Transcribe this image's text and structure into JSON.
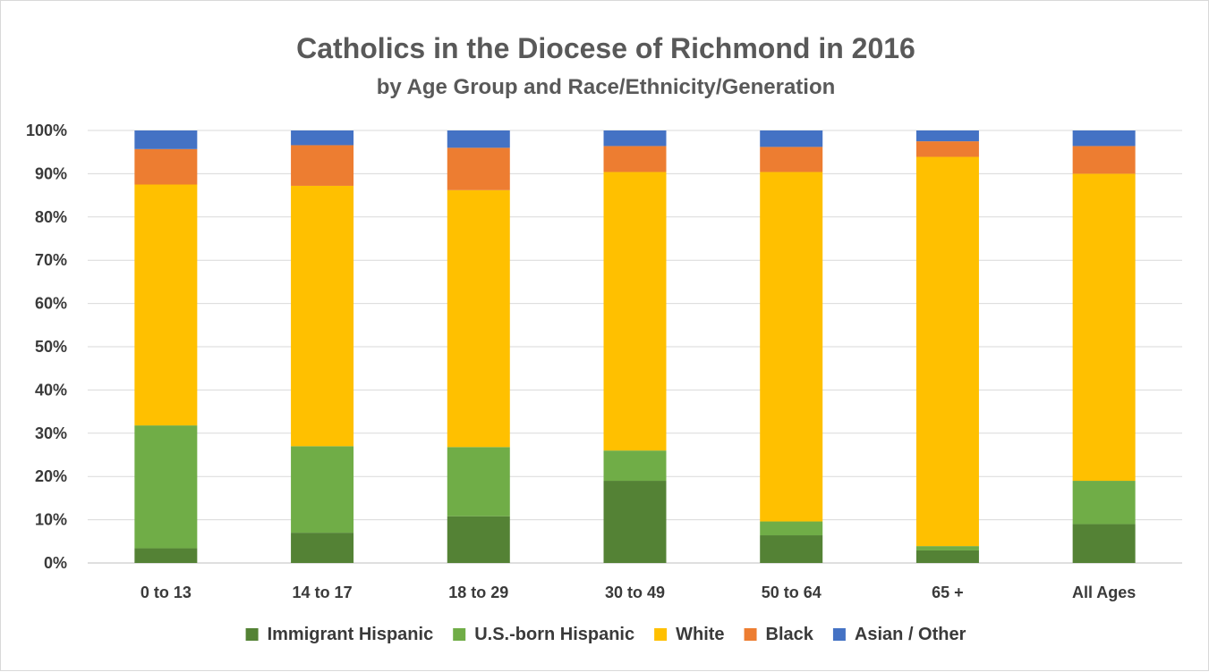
{
  "chart_data": {
    "type": "bar",
    "stacked": true,
    "title": "Catholics in the Diocese of Richmond in 2016",
    "subtitle": "by Age Group and Race/Ethnicity/Generation",
    "xlabel": "",
    "ylabel": "",
    "ylim": [
      0,
      100
    ],
    "y_ticks": [
      "0%",
      "10%",
      "20%",
      "30%",
      "40%",
      "50%",
      "60%",
      "70%",
      "80%",
      "90%",
      "100%"
    ],
    "grid": true,
    "legend_position": "bottom",
    "categories": [
      "0 to 13",
      "14 to 17",
      "18 to 29",
      "30 to 49",
      "50 to 64",
      "65 +",
      "All Ages"
    ],
    "series": [
      {
        "name": "Immigrant Hispanic",
        "color": "#548235",
        "values": [
          3.4,
          7.0,
          10.8,
          19.0,
          6.4,
          2.9,
          9.0
        ]
      },
      {
        "name": "U.S.-born Hispanic",
        "color": "#70ad47",
        "values": [
          28.4,
          20.0,
          16.0,
          7.0,
          3.2,
          1.0,
          10.0
        ]
      },
      {
        "name": "White",
        "color": "#ffc000",
        "values": [
          55.7,
          60.2,
          59.4,
          64.4,
          80.8,
          90.0,
          71.0
        ]
      },
      {
        "name": "Black",
        "color": "#ed7d31",
        "values": [
          8.2,
          9.4,
          9.8,
          6.0,
          5.8,
          3.6,
          6.4
        ]
      },
      {
        "name": "Asian / Other",
        "color": "#4472c4",
        "values": [
          4.3,
          3.4,
          4.0,
          3.6,
          3.8,
          2.5,
          3.6
        ]
      }
    ]
  }
}
